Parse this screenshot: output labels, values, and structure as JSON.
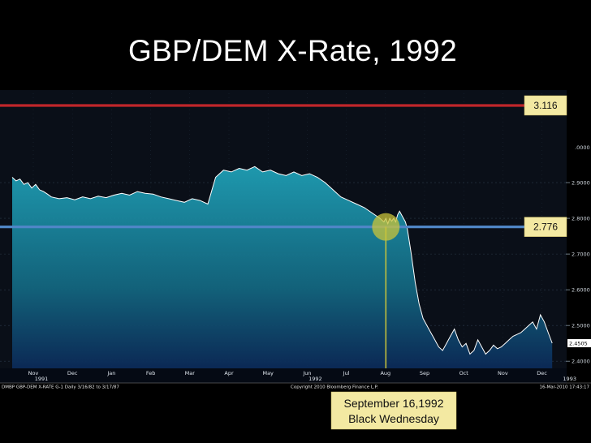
{
  "slide": {
    "title": "GBP/DEM X-Rate, 1992"
  },
  "colors": {
    "upper_line": "#c0262a",
    "lower_line": "#4f86c6",
    "callout_bg": "#f3e9a2",
    "marker": "#c9c43a",
    "series_line": "#ffffff",
    "plot_top": "#0f5f70",
    "plot_bottom": "#0b1746"
  },
  "chart_data": {
    "type": "area",
    "title": "GBP/DEM X-Rate, 1992",
    "ylim": [
      2.38,
      3.15
    ],
    "y_ticks": [
      2.9,
      2.8,
      2.7,
      2.6,
      2.5,
      2.4
    ],
    "y_tick_labels": [
      "2.9000",
      "2.8000",
      "2.7000",
      "2.6000",
      "2.5000",
      "2.4000"
    ],
    "top_tick_label": ".0000",
    "months": [
      "Nov",
      "Dec",
      "Jan",
      "Feb",
      "Mar",
      "Apr",
      "May",
      "Jun",
      "Jul",
      "Aug",
      "Sep",
      "Oct",
      "Nov",
      "Dec"
    ],
    "year_labels": [
      {
        "label": "1991",
        "month_index": 0
      },
      {
        "label": "1992",
        "month_index": 7
      },
      {
        "label": "1993",
        "month_index": 13.5
      }
    ],
    "reference_lines": [
      {
        "label": "3.116",
        "value": 3.116
      },
      {
        "label": "2.776",
        "value": 2.776
      }
    ],
    "last_value_label": "2.4505",
    "series": [
      {
        "x": [
          0,
          0.1,
          0.2,
          0.3,
          0.4,
          0.5,
          0.6,
          0.7,
          0.8,
          0.9,
          1.0,
          1.2,
          1.4,
          1.6,
          1.8,
          2.0,
          2.2,
          2.4,
          2.6,
          2.8,
          3.0,
          3.2,
          3.4,
          3.6,
          3.8,
          4.0,
          4.2,
          4.4,
          4.6,
          4.8,
          5.0,
          5.2,
          5.4,
          5.6,
          5.8,
          6.0,
          6.2,
          6.4,
          6.6,
          6.8,
          7.0,
          7.2,
          7.4,
          7.6,
          7.8,
          8.0,
          8.2,
          8.4,
          8.6,
          8.8,
          9.0,
          9.2,
          9.4,
          9.5,
          9.55,
          9.6,
          9.65,
          9.7,
          9.75,
          9.8,
          9.85,
          9.9,
          9.95,
          10.0,
          10.05,
          10.1,
          10.2,
          10.3,
          10.4,
          10.5,
          10.6,
          10.7,
          10.8,
          10.9,
          11.0,
          11.1,
          11.2,
          11.3,
          11.4,
          11.5,
          11.6,
          11.7,
          11.8,
          11.9,
          12.0,
          12.1,
          12.2,
          12.3,
          12.4,
          12.5,
          12.6,
          12.7,
          12.8,
          12.9,
          13.0,
          13.1,
          13.2,
          13.3,
          13.4,
          13.5,
          13.6,
          13.7,
          13.8
        ],
        "y": [
          2.915,
          2.905,
          2.91,
          2.895,
          2.9,
          2.885,
          2.895,
          2.88,
          2.875,
          2.868,
          2.86,
          2.855,
          2.858,
          2.852,
          2.86,
          2.855,
          2.862,
          2.858,
          2.865,
          2.87,
          2.865,
          2.875,
          2.87,
          2.868,
          2.86,
          2.855,
          2.85,
          2.845,
          2.855,
          2.85,
          2.84,
          2.915,
          2.935,
          2.93,
          2.94,
          2.935,
          2.945,
          2.93,
          2.935,
          2.925,
          2.92,
          2.93,
          2.92,
          2.925,
          2.915,
          2.9,
          2.88,
          2.86,
          2.85,
          2.84,
          2.83,
          2.815,
          2.8,
          2.79,
          2.8,
          2.785,
          2.8,
          2.792,
          2.8,
          2.79,
          2.81,
          2.82,
          2.81,
          2.8,
          2.79,
          2.77,
          2.7,
          2.62,
          2.56,
          2.52,
          2.5,
          2.48,
          2.46,
          2.44,
          2.43,
          2.45,
          2.47,
          2.49,
          2.46,
          2.44,
          2.45,
          2.42,
          2.43,
          2.46,
          2.44,
          2.42,
          2.43,
          2.445,
          2.435,
          2.44,
          2.45,
          2.46,
          2.47,
          2.475,
          2.48,
          2.49,
          2.5,
          2.51,
          2.49,
          2.53,
          2.51,
          2.48,
          2.4505
        ]
      }
    ],
    "annotations": [
      {
        "text": "September 16,1992"
      },
      {
        "text": "Black Wednesday"
      }
    ]
  },
  "footer": {
    "left_text": "DMBP  GBP-DEM X-RATE   G-1  Daily 3/16/82 to 3/17/87",
    "center_text": "Copyright 2010 Bloomberg Finance L.P.",
    "right_text": "16-Mar-2010 17:43:17"
  }
}
